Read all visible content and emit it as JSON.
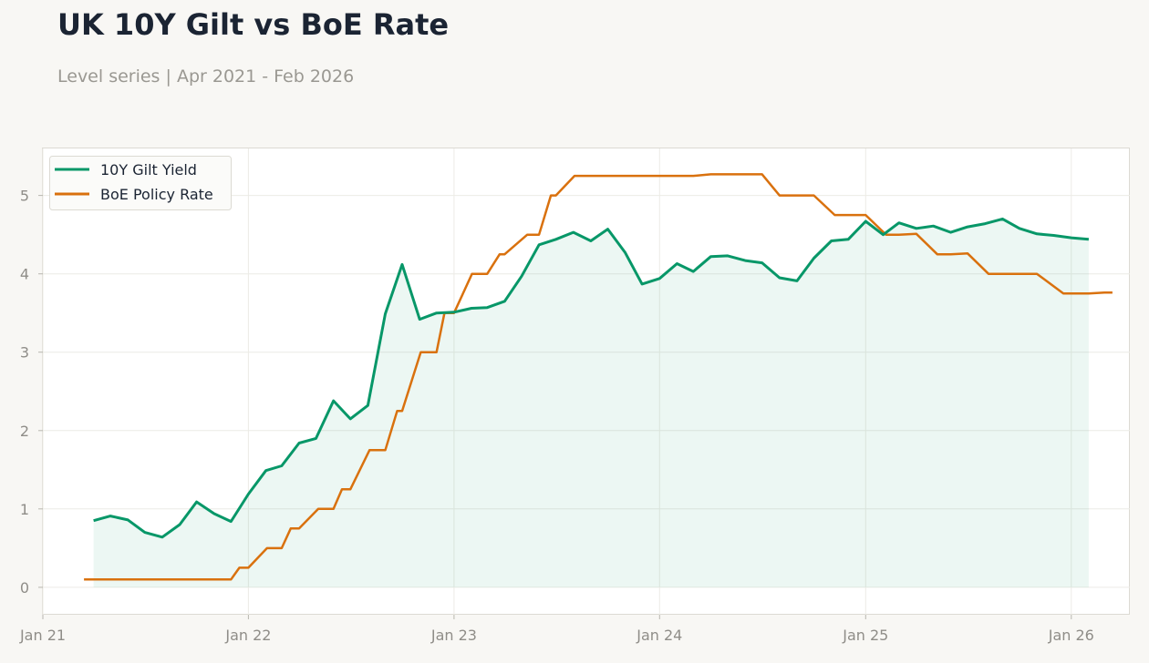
{
  "page": {
    "title": "UK 10Y Gilt vs BoE Rate",
    "subtitle": "Level series | Apr 2021 - Feb 2026"
  },
  "colors": {
    "gilt": "#079768",
    "boe": "#d9710e",
    "background": "#f8f7f4",
    "plot_background": "#ffffff",
    "title": "#1b2433",
    "muted": "#9a9892"
  },
  "chart_data": {
    "type": "line",
    "title": "UK 10Y Gilt vs BoE Rate",
    "subtitle": "Level series | Apr 2021 - Feb 2026",
    "xlabel": "",
    "ylabel": "",
    "xlim": [
      "2021-01-01",
      "2026-04-15"
    ],
    "ylim": [
      -0.35,
      5.6
    ],
    "x_ticks": [
      {
        "date": "2021-01-01",
        "label": "Jan 21"
      },
      {
        "date": "2022-01-01",
        "label": "Jan 22"
      },
      {
        "date": "2023-01-01",
        "label": "Jan 23"
      },
      {
        "date": "2024-01-01",
        "label": "Jan 24"
      },
      {
        "date": "2025-01-01",
        "label": "Jan 25"
      },
      {
        "date": "2026-01-01",
        "label": "Jan 26"
      }
    ],
    "y_ticks": [
      0,
      1,
      2,
      3,
      4,
      5
    ],
    "grid": true,
    "legend": "top-left",
    "series": [
      {
        "name": "10Y Gilt Yield",
        "style": "line-area",
        "x": [
          "2021-04-01",
          "2021-05-01",
          "2021-06-01",
          "2021-07-01",
          "2021-08-01",
          "2021-09-01",
          "2021-10-01",
          "2021-11-01",
          "2021-12-01",
          "2022-01-01",
          "2022-02-01",
          "2022-03-01",
          "2022-04-01",
          "2022-05-01",
          "2022-06-01",
          "2022-07-01",
          "2022-08-01",
          "2022-09-01",
          "2022-10-01",
          "2022-11-01",
          "2022-12-01",
          "2023-01-01",
          "2023-02-01",
          "2023-03-01",
          "2023-04-01",
          "2023-05-01",
          "2023-06-01",
          "2023-07-01",
          "2023-08-01",
          "2023-09-01",
          "2023-10-01",
          "2023-11-01",
          "2023-12-01",
          "2024-01-01",
          "2024-02-01",
          "2024-03-01",
          "2024-04-01",
          "2024-05-01",
          "2024-06-01",
          "2024-07-01",
          "2024-08-01",
          "2024-09-01",
          "2024-10-01",
          "2024-11-01",
          "2024-12-01",
          "2025-01-01",
          "2025-02-01",
          "2025-03-01",
          "2025-04-01",
          "2025-05-01",
          "2025-06-01",
          "2025-07-01",
          "2025-08-01",
          "2025-09-01",
          "2025-10-01",
          "2025-11-01",
          "2025-12-01",
          "2026-01-01",
          "2026-02-01"
        ],
        "values": [
          0.85,
          0.91,
          0.86,
          0.7,
          0.64,
          0.8,
          1.09,
          0.94,
          0.84,
          1.19,
          1.49,
          1.55,
          1.84,
          1.9,
          2.38,
          2.15,
          2.32,
          3.49,
          4.12,
          3.42,
          3.5,
          3.51,
          3.56,
          3.57,
          3.65,
          3.97,
          4.37,
          4.44,
          4.53,
          4.42,
          4.57,
          4.27,
          3.87,
          3.94,
          4.13,
          4.03,
          4.22,
          4.23,
          4.17,
          4.14,
          3.95,
          3.91,
          4.2,
          4.42,
          4.44,
          4.67,
          4.5,
          4.65,
          4.58,
          4.61,
          4.53,
          4.6,
          4.64,
          4.7,
          4.58,
          4.51,
          4.49,
          4.46,
          4.44
        ]
      },
      {
        "name": "BoE Policy Rate",
        "style": "line",
        "x": [
          "2021-03-15",
          "2021-04-01",
          "2021-05-01",
          "2021-06-01",
          "2021-07-01",
          "2021-08-01",
          "2021-09-01",
          "2021-10-01",
          "2021-11-01",
          "2021-12-01",
          "2021-12-16",
          "2022-01-01",
          "2022-02-03",
          "2022-03-01",
          "2022-03-17",
          "2022-04-01",
          "2022-05-05",
          "2022-06-01",
          "2022-06-16",
          "2022-07-01",
          "2022-08-04",
          "2022-09-01",
          "2022-09-22",
          "2022-10-01",
          "2022-11-03",
          "2022-12-01",
          "2022-12-15",
          "2023-01-01",
          "2023-02-02",
          "2023-03-01",
          "2023-03-23",
          "2023-04-01",
          "2023-05-11",
          "2023-06-01",
          "2023-06-22",
          "2023-07-01",
          "2023-08-03",
          "2023-09-01",
          "2023-10-01",
          "2023-11-01",
          "2023-12-01",
          "2024-01-01",
          "2024-02-01",
          "2024-03-01",
          "2024-04-01",
          "2024-05-01",
          "2024-06-01",
          "2024-07-01",
          "2024-08-01",
          "2024-09-01",
          "2024-10-01",
          "2024-11-07",
          "2024-12-01",
          "2025-01-01",
          "2025-02-06",
          "2025-03-01",
          "2025-04-01",
          "2025-05-08",
          "2025-06-01",
          "2025-07-01",
          "2025-08-07",
          "2025-09-01",
          "2025-10-01",
          "2025-11-01",
          "2025-12-18",
          "2026-01-01",
          "2026-02-01",
          "2026-03-01",
          "2026-03-15"
        ],
        "values": [
          0.1,
          0.1,
          0.1,
          0.1,
          0.1,
          0.1,
          0.1,
          0.1,
          0.1,
          0.1,
          0.25,
          0.25,
          0.5,
          0.5,
          0.75,
          0.75,
          1.0,
          1.0,
          1.25,
          1.25,
          1.75,
          1.75,
          2.25,
          2.25,
          3.0,
          3.0,
          3.5,
          3.5,
          4.0,
          4.0,
          4.25,
          4.25,
          4.5,
          4.5,
          5.0,
          5.0,
          5.25,
          5.25,
          5.25,
          5.25,
          5.25,
          5.25,
          5.25,
          5.25,
          5.27,
          5.27,
          5.27,
          5.27,
          5.0,
          5.0,
          5.0,
          4.75,
          4.75,
          4.75,
          4.5,
          4.5,
          4.51,
          4.25,
          4.25,
          4.26,
          4.0,
          4.0,
          4.0,
          4.0,
          3.75,
          3.75,
          3.75,
          3.76,
          3.76
        ],
        "step": true
      }
    ]
  }
}
